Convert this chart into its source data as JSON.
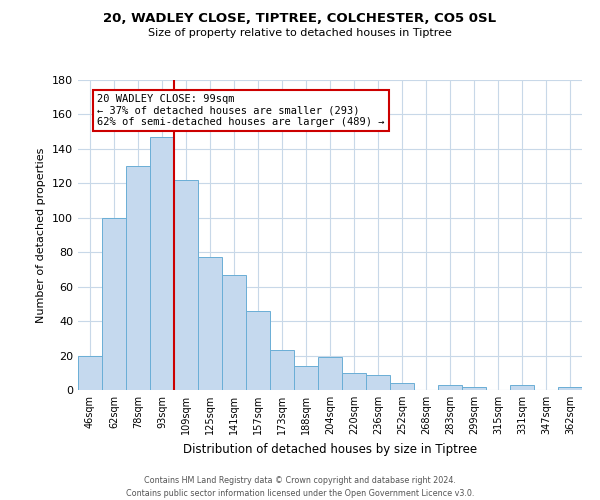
{
  "title": "20, WADLEY CLOSE, TIPTREE, COLCHESTER, CO5 0SL",
  "subtitle": "Size of property relative to detached houses in Tiptree",
  "xlabel": "Distribution of detached houses by size in Tiptree",
  "ylabel": "Number of detached properties",
  "bar_labels": [
    "46sqm",
    "62sqm",
    "78sqm",
    "93sqm",
    "109sqm",
    "125sqm",
    "141sqm",
    "157sqm",
    "173sqm",
    "188sqm",
    "204sqm",
    "220sqm",
    "236sqm",
    "252sqm",
    "268sqm",
    "283sqm",
    "299sqm",
    "315sqm",
    "331sqm",
    "347sqm",
    "362sqm"
  ],
  "bar_values": [
    20,
    100,
    130,
    147,
    122,
    77,
    67,
    46,
    23,
    14,
    19,
    10,
    9,
    4,
    0,
    3,
    2,
    0,
    3,
    0,
    2
  ],
  "bar_color": "#c5d9ee",
  "bar_edge_color": "#6aaed6",
  "background_color": "#ffffff",
  "grid_color": "#c8d8e8",
  "ylim": [
    0,
    180
  ],
  "yticks": [
    0,
    20,
    40,
    60,
    80,
    100,
    120,
    140,
    160,
    180
  ],
  "property_line_color": "#cc0000",
  "annotation_line1": "20 WADLEY CLOSE: 99sqm",
  "annotation_line2": "← 37% of detached houses are smaller (293)",
  "annotation_line3": "62% of semi-detached houses are larger (489) →",
  "annotation_box_edge": "#cc0000",
  "footer_line1": "Contains HM Land Registry data © Crown copyright and database right 2024.",
  "footer_line2": "Contains public sector information licensed under the Open Government Licence v3.0."
}
